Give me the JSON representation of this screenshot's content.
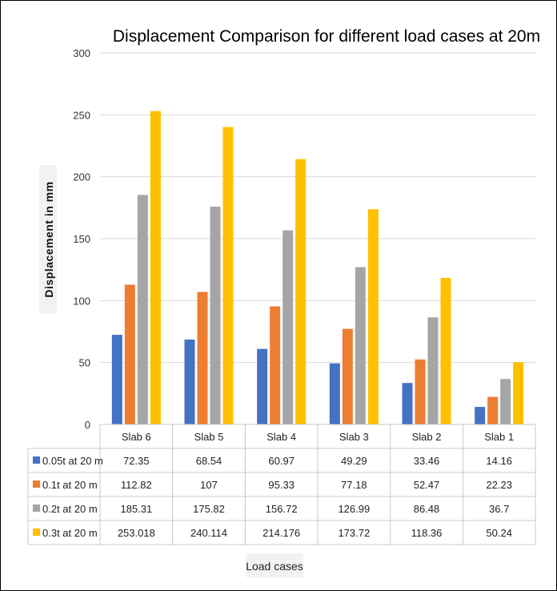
{
  "chart_data": {
    "type": "bar",
    "title": "Displacement Comparison for different load cases at 20m",
    "xlabel": "Load cases",
    "ylabel": "Displacement in mm",
    "ylim": [
      0,
      300
    ],
    "yticks": [
      "0",
      "50",
      "100",
      "150",
      "200",
      "250",
      "300"
    ],
    "grid": true,
    "legend": "data-table-left",
    "categories": [
      "Slab 6",
      "Slab 5",
      "Slab 4",
      "Slab 3",
      "Slab 2",
      "Slab 1"
    ],
    "series": [
      {
        "name": "0.05t at 20 m",
        "color": "#4472C4",
        "values": [
          72.35,
          68.54,
          60.97,
          49.29,
          33.46,
          14.16
        ],
        "labels": [
          "72.35",
          "68.54",
          "60.97",
          "49.29",
          "33.46",
          "14.16"
        ]
      },
      {
        "name": "0.1t at 20 m",
        "color": "#ED7D31",
        "values": [
          112.82,
          107,
          95.33,
          77.18,
          52.47,
          22.23
        ],
        "labels": [
          "112.82",
          "107",
          "95.33",
          "77.18",
          "52.47",
          "22.23"
        ]
      },
      {
        "name": "0.2t at 20 m",
        "color": "#A5A5A5",
        "values": [
          185.31,
          175.82,
          156.72,
          126.99,
          86.48,
          36.7
        ],
        "labels": [
          "185.31",
          "175.82",
          "156.72",
          "126.99",
          "86.48",
          "36.7"
        ]
      },
      {
        "name": "0.3t at 20 m",
        "color": "#FFC000",
        "values": [
          253.018,
          240.114,
          214.176,
          173.72,
          118.36,
          50.24
        ],
        "labels": [
          "253.018",
          "240.114",
          "214.176",
          "173.72",
          "118.36",
          "50.24"
        ]
      }
    ]
  }
}
